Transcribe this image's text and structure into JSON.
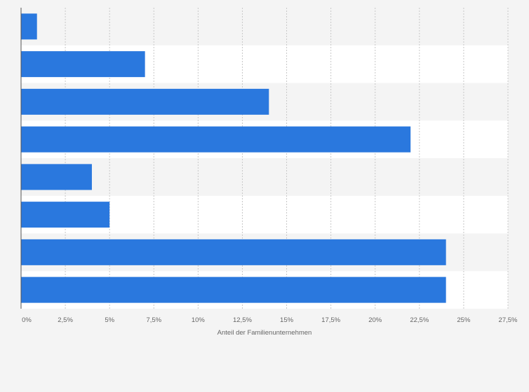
{
  "chart_data": {
    "type": "bar",
    "orientation": "horizontal",
    "categories": [
      "",
      "",
      "",
      "",
      "",
      "",
      "",
      ""
    ],
    "values": [
      0.9,
      7,
      14,
      22,
      4,
      5,
      24,
      24
    ],
    "xlabel": "Anteil der Familienunternehmen",
    "xlim": [
      0,
      27.5
    ],
    "ticks": [
      0,
      2.5,
      5,
      7.5,
      10,
      12.5,
      15,
      17.5,
      20,
      22.5,
      25,
      27.5
    ],
    "tick_labels": [
      "0%",
      "2,5%",
      "5%",
      "7,5%",
      "10%",
      "12,5%",
      "15%",
      "17,5%",
      "20%",
      "22,5%",
      "25%",
      "27,5%"
    ],
    "grid": true,
    "colors": {
      "bar": "#2a78de",
      "band_alt": "#ffffff",
      "background": "#f4f4f4",
      "grid": "#c8c8c8",
      "axis": "#555555",
      "text": "#666666"
    }
  }
}
